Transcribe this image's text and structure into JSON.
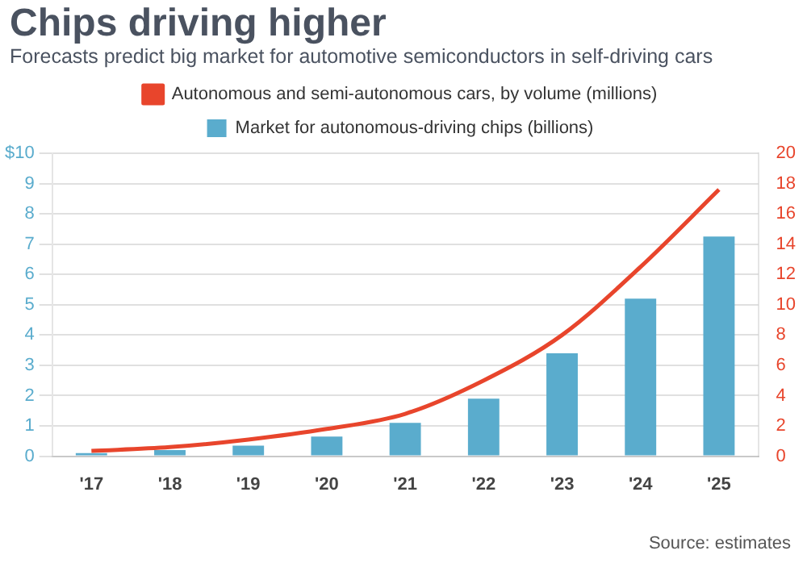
{
  "chart_data": {
    "type": "bar",
    "title": "Chips driving higher",
    "subtitle": "Forecasts predict big market for automotive semiconductors in self-driving cars",
    "categories": [
      "'17",
      "'18",
      "'19",
      "'20",
      "'21",
      "'22",
      "'23",
      "'24",
      "'25"
    ],
    "series": [
      {
        "name": "Market for autonomous-driving chips (billions)",
        "color": "#5aaccd",
        "values": [
          0.1,
          0.2,
          0.35,
          0.65,
          1.1,
          1.9,
          3.4,
          5.2,
          7.25
        ]
      },
      {
        "name": "Autonomous and semi-autonomous cars, by volume (millions)",
        "type": "line",
        "axis": "y2",
        "color": "#e8452c",
        "values": [
          0.35,
          0.6,
          1.1,
          1.8,
          2.8,
          5.0,
          8.0,
          12.5,
          17.6
        ]
      }
    ],
    "ylim": [
      0,
      10
    ],
    "yticks": [
      0,
      1,
      2,
      3,
      4,
      5,
      6,
      7,
      8,
      9,
      {
        "value": 10,
        "label": "$10"
      }
    ],
    "y2lim": [
      0,
      20
    ],
    "y2ticks": [
      0,
      2,
      4,
      6,
      8,
      10,
      12,
      14,
      16,
      18,
      20
    ],
    "grid": "y",
    "legend": "top",
    "marker": "none",
    "line_style": "solid",
    "annotations": [
      "Source: estimates"
    ]
  }
}
